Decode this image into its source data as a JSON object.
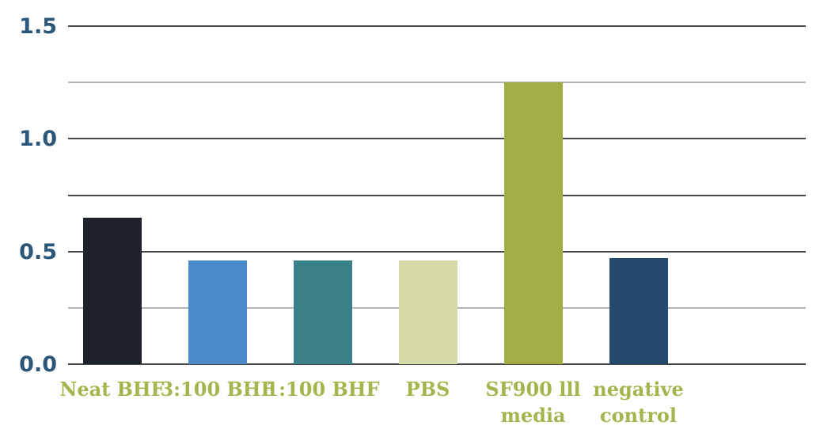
{
  "chart_data": {
    "type": "bar",
    "title": "",
    "xlabel": "",
    "ylabel": "",
    "categories": [
      "Neat BHF",
      "3:100 BHF",
      "1:100 BHF",
      "PBS",
      "SF900 lll media",
      "negative control"
    ],
    "category_lines": [
      [
        "Neat BHF"
      ],
      [
        "3:100 BHF"
      ],
      [
        "1:100 BHF"
      ],
      [
        "PBS"
      ],
      [
        "SF900 lll",
        "media"
      ],
      [
        "negative",
        "control"
      ]
    ],
    "values": [
      0.65,
      0.46,
      0.46,
      0.46,
      1.25,
      0.47
    ],
    "bar_colors": [
      "#1d222b",
      "#4a8ac9",
      "#398088",
      "#d6daa8",
      "#a2ae45",
      "#25496d"
    ],
    "ylim": [
      0,
      1.5
    ],
    "ytick_interval": 0.25,
    "yticks_labeled": [
      0,
      0.5,
      1.0,
      1.5
    ],
    "ytick_labels": [
      "0.0",
      "0.5",
      "1.0",
      "1.5"
    ],
    "grid": "horizontal",
    "minor_gridlines_at": [
      0.25,
      1.25
    ],
    "colors": {
      "gridline_major": "#474747",
      "gridline_minor": "#b3b3b3",
      "y_axis_label": "#2a5679",
      "x_axis_label": "#a3b54c",
      "background": "#ffffff"
    },
    "legend": "none"
  }
}
